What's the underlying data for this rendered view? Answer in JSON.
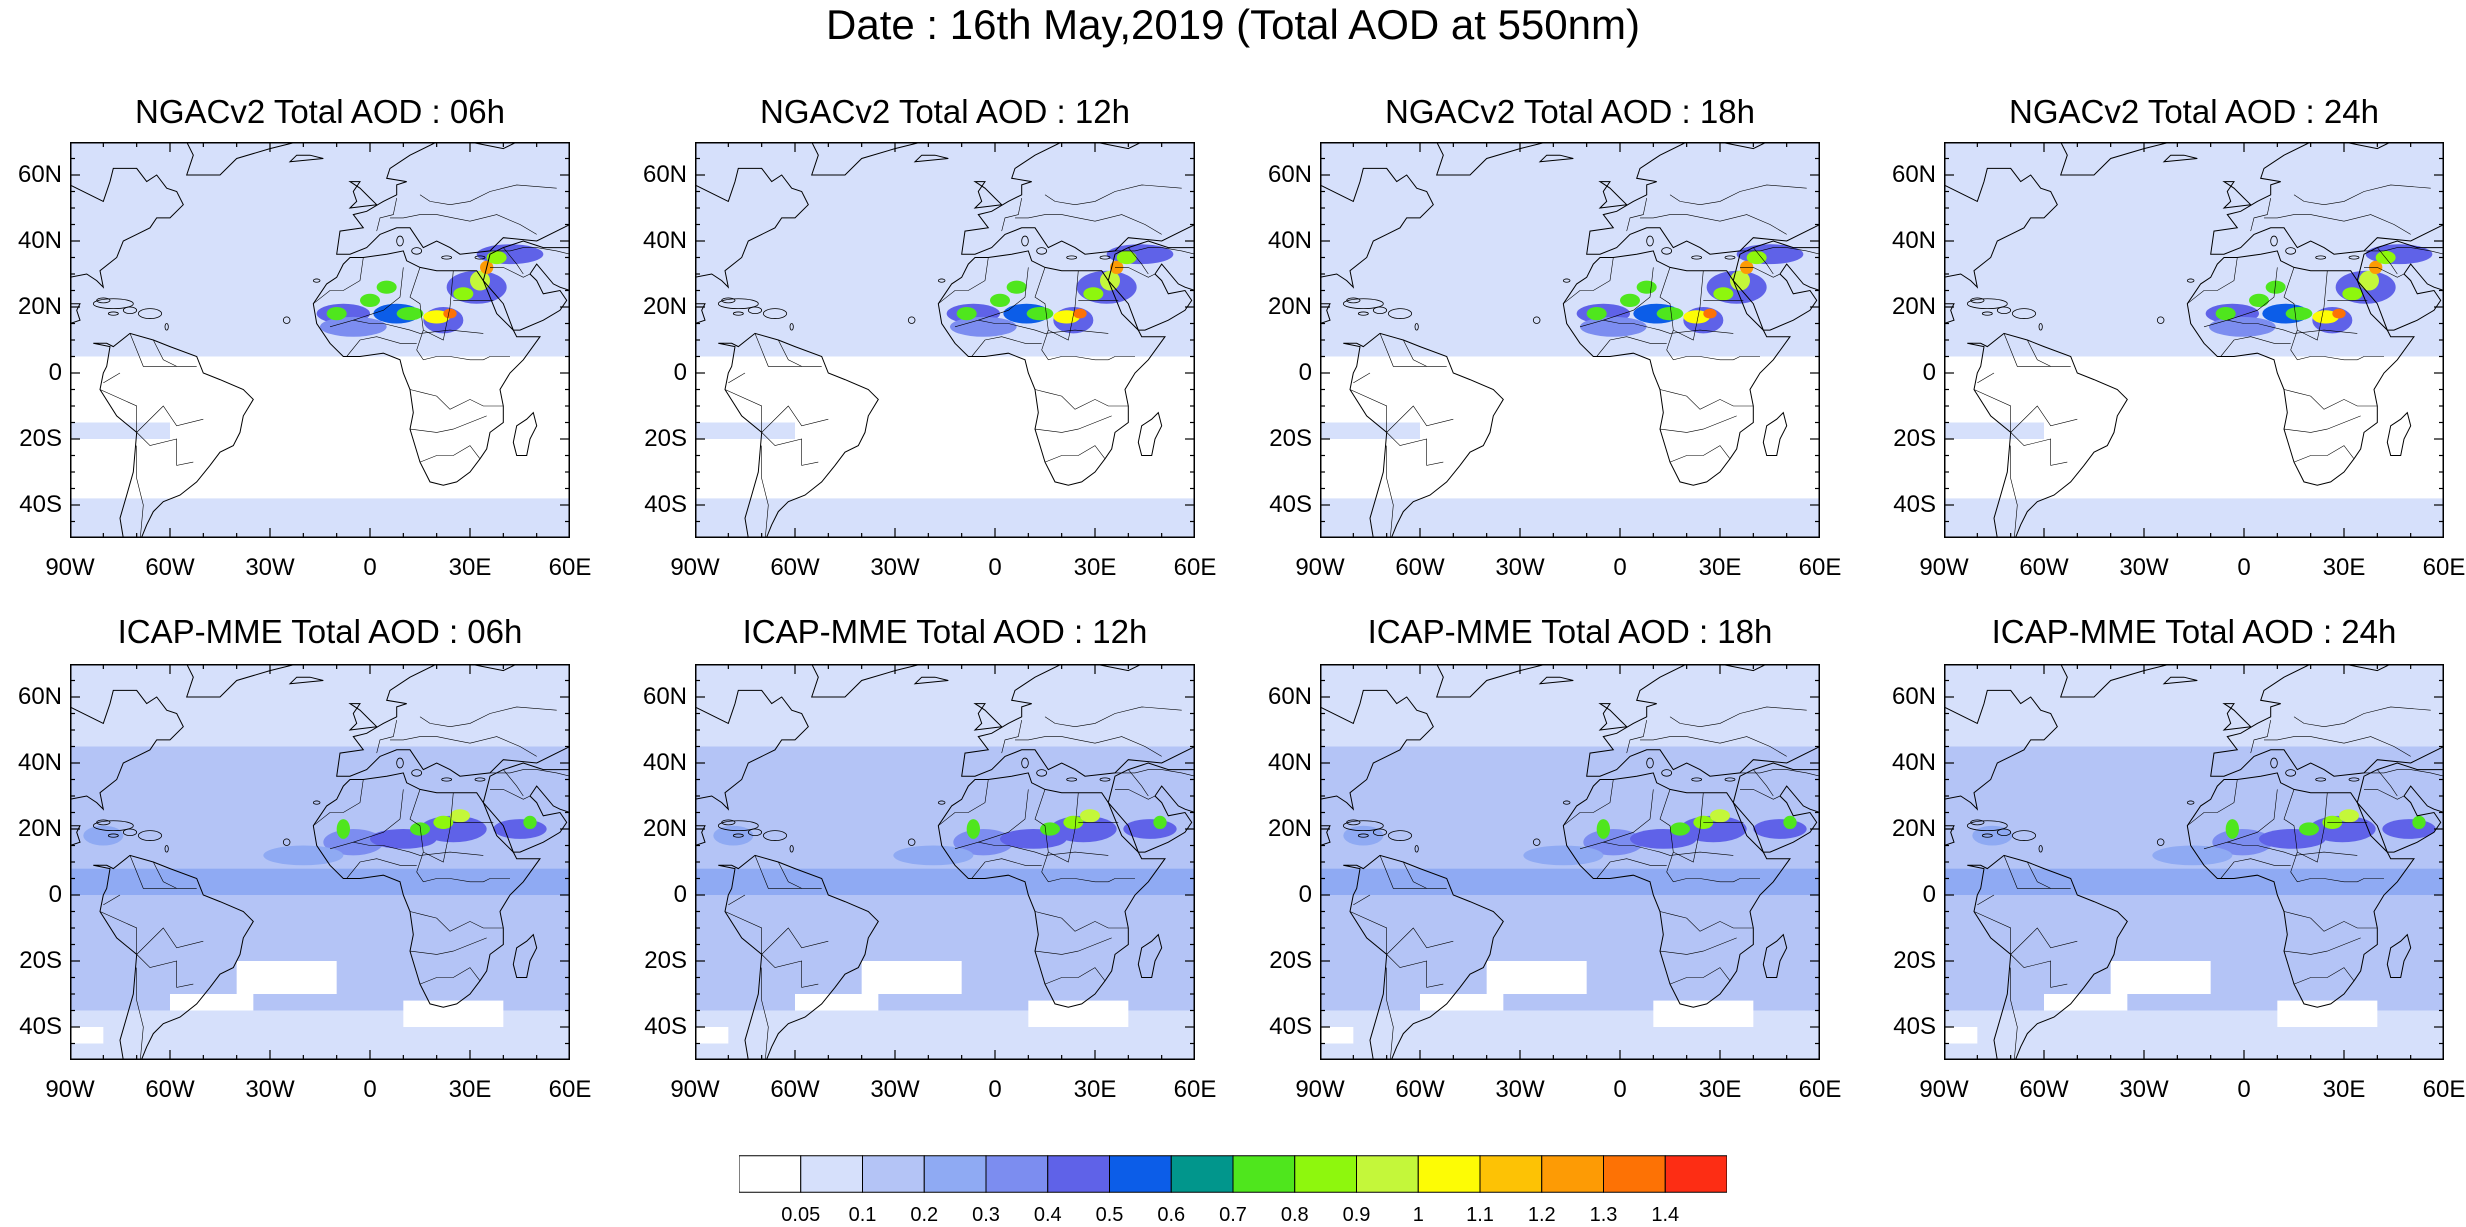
{
  "title": "Date : 16th May,2019 (Total AOD at 550nm)",
  "panels": [
    {
      "title": "NGACv2 Total AOD : 06h",
      "model": "ngac"
    },
    {
      "title": "NGACv2 Total AOD : 12h",
      "model": "ngac"
    },
    {
      "title": "NGACv2 Total AOD : 18h",
      "model": "ngac"
    },
    {
      "title": "NGACv2 Total AOD : 24h",
      "model": "ngac"
    },
    {
      "title": "ICAP-MME Total AOD : 06h",
      "model": "icap"
    },
    {
      "title": "ICAP-MME Total AOD : 12h",
      "model": "icap"
    },
    {
      "title": "ICAP-MME Total AOD : 18h",
      "model": "icap"
    },
    {
      "title": "ICAP-MME Total AOD : 24h",
      "model": "icap"
    }
  ],
  "axes": {
    "lat_ticks": [
      "60N",
      "40N",
      "20N",
      "0",
      "20S",
      "40S"
    ],
    "lon_ticks": [
      "90W",
      "60W",
      "30W",
      "0",
      "30E",
      "60E"
    ],
    "lon_range": [
      -90,
      60
    ],
    "lat_range": [
      -50,
      70
    ]
  },
  "colorbar": {
    "levels": [
      "0.05",
      "0.1",
      "0.2",
      "0.3",
      "0.4",
      "0.5",
      "0.6",
      "0.7",
      "0.8",
      "0.9",
      "1",
      "1.1",
      "1.2",
      "1.3",
      "1.4"
    ],
    "colors": [
      "#ffffff",
      "#d6e0fb",
      "#b4c4f6",
      "#8faaf3",
      "#7c8df0",
      "#5f62e8",
      "#0c5de8",
      "#01968c",
      "#4fe61d",
      "#8ef70d",
      "#c4f73a",
      "#fdfc05",
      "#fdc205",
      "#fd9b05",
      "#fd7205",
      "#fd2d14"
    ]
  }
}
